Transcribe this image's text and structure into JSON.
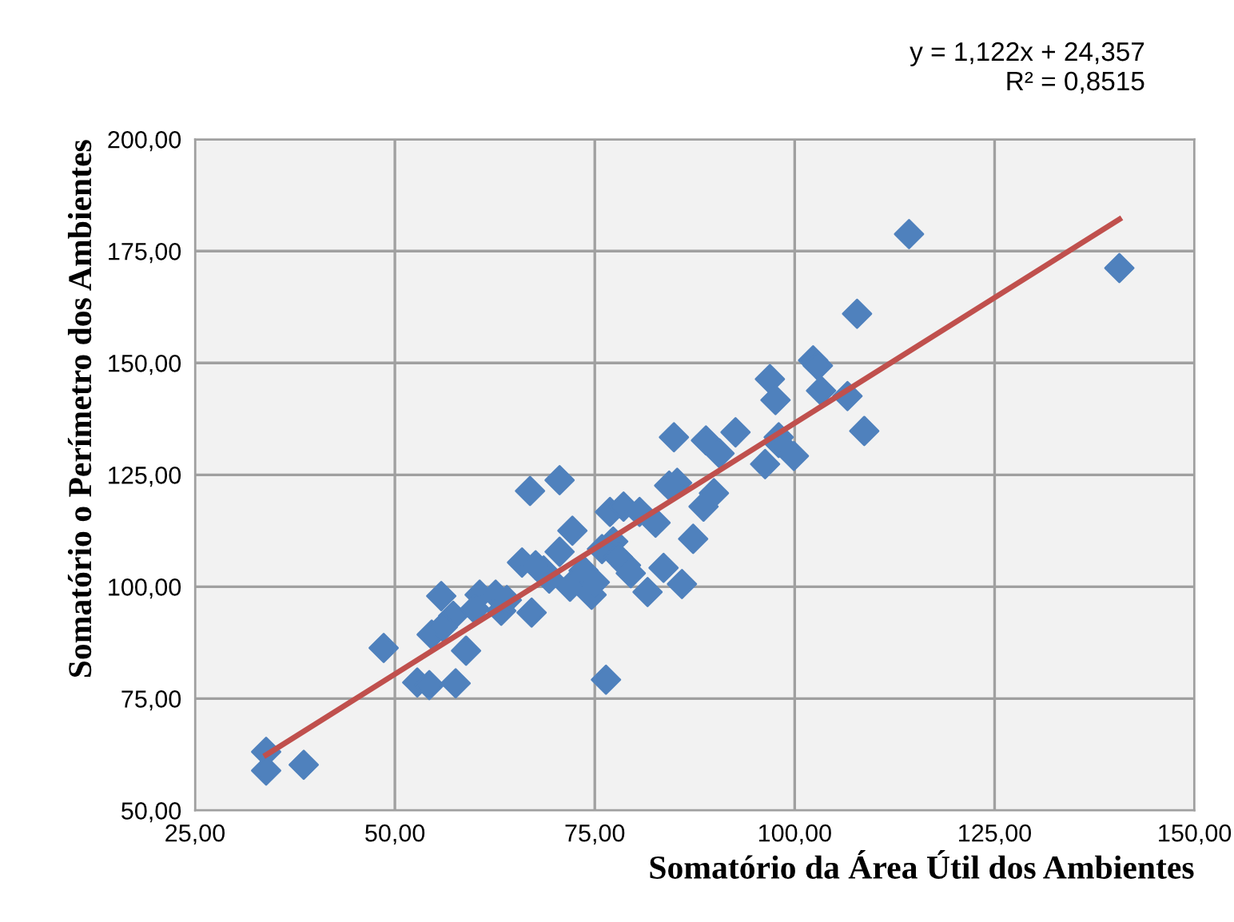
{
  "chart_data": {
    "type": "scatter",
    "xlabel": "Somatório da Área Útil dos Ambientes",
    "ylabel": "Somatório o Perímetro dos Ambientes",
    "annotations": [
      "y = 1,122x + 24,357",
      "R² = 0,8515"
    ],
    "series": [
      {
        "color": "#4f81bd",
        "marker": "diamond",
        "x": [
          33.9,
          33.9,
          38.6,
          48.6,
          52.8,
          54.3,
          57.6,
          55.8,
          54.6,
          57.3,
          58.9,
          60.6,
          63.3,
          67.1,
          66.9,
          70.6,
          72.2,
          65.9,
          71.9,
          69.3,
          70.6,
          73.6,
          74.6,
          76.9,
          78.6,
          77.3,
          78.9,
          80.6,
          82.6,
          81.6,
          83.6,
          85.9,
          87.3,
          88.6,
          89.9,
          85.3,
          84.3,
          84.9,
          88.9,
          90.6,
          92.6,
          96.9,
          97.6,
          96.3,
          98.0,
          99.9,
          75.9,
          77.9,
          68.6,
          62.6,
          67.6,
          76.4,
          114.3,
          140.6,
          107.8,
          102.3,
          102.9,
          103.3,
          106.6,
          108.7,
          98.0,
          56.0,
          60.0,
          64.0,
          75.0,
          79.5
        ],
        "values": [
          63.1,
          58.9,
          60.2,
          86.3,
          78.6,
          78.0,
          78.4,
          97.9,
          89.3,
          93.5,
          85.7,
          98.2,
          94.6,
          94.2,
          121.4,
          123.8,
          112.5,
          105.4,
          100.0,
          101.8,
          107.8,
          103.6,
          98.2,
          116.7,
          117.9,
          110.1,
          104.8,
          116.7,
          114.3,
          98.8,
          104.2,
          100.6,
          110.7,
          117.9,
          120.9,
          123.2,
          122.6,
          133.4,
          132.7,
          129.8,
          134.5,
          146.4,
          141.7,
          127.4,
          132.1,
          129.2,
          108.4,
          106.6,
          103.6,
          98.2,
          104.8,
          79.2,
          178.8,
          171.2,
          161.0,
          150.6,
          149.4,
          143.8,
          142.6,
          134.8,
          133.4,
          91.0,
          95.0,
          97.0,
          101.0,
          103.0
        ]
      },
      {
        "type": "line",
        "color": "#c0504d",
        "marker": "none",
        "line_style": "solid",
        "x": [
          33.9,
          140.6
        ],
        "values": [
          62.4,
          182.1
        ]
      }
    ],
    "xlim": [
      25,
      150
    ],
    "ylim": [
      50,
      200
    ],
    "xticks": [
      {
        "value": 25,
        "label": "25,00"
      },
      {
        "value": 50,
        "label": "50,00"
      },
      {
        "value": 75,
        "label": "75,00"
      },
      {
        "value": 100,
        "label": "100,00"
      },
      {
        "value": 125,
        "label": "125,00"
      },
      {
        "value": 150,
        "label": "150,00"
      }
    ],
    "yticks": [
      {
        "value": 50,
        "label": "50,00"
      },
      {
        "value": 75,
        "label": "75,00"
      },
      {
        "value": 100,
        "label": "100,00"
      },
      {
        "value": 125,
        "label": "125,00"
      },
      {
        "value": 150,
        "label": "150,00"
      },
      {
        "value": 175,
        "label": "175,00"
      },
      {
        "value": 200,
        "label": "200,00"
      }
    ],
    "grid": true,
    "legend": false
  }
}
